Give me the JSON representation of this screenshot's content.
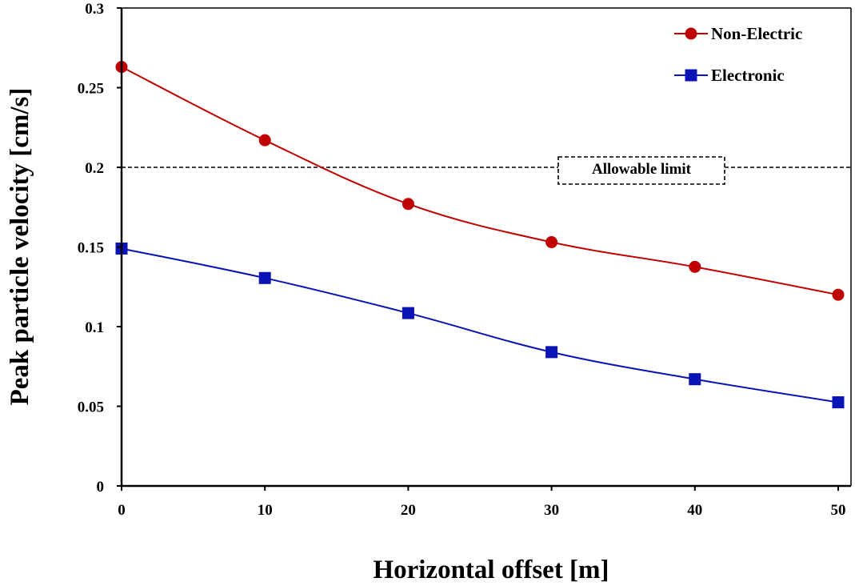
{
  "chart_data": {
    "type": "line",
    "title": "",
    "xlabel": "Horizontal offset [m]",
    "ylabel": "Peak particle velocity [cm/s]",
    "x": [
      0,
      10,
      20,
      30,
      40,
      50
    ],
    "xlim": [
      0,
      50
    ],
    "ylim": [
      0,
      0.3
    ],
    "xticks": [
      0,
      10,
      20,
      30,
      40,
      50
    ],
    "xtick_labels": [
      "0",
      "10",
      "20",
      "30",
      "40",
      "50"
    ],
    "yticks": [
      0,
      0.05,
      0.1,
      0.15,
      0.2,
      0.25,
      0.3
    ],
    "ytick_labels": [
      "0",
      "0.05",
      "0.1",
      "0.15",
      "0.2",
      "0.25",
      "0.3"
    ],
    "grid": false,
    "legend_position": "top-right",
    "series": [
      {
        "name": "Non-Electric",
        "marker": "circle",
        "color": "#C00000",
        "values": [
          0.263,
          0.217,
          0.177,
          0.153,
          0.1375,
          0.12
        ]
      },
      {
        "name": "Electronic",
        "marker": "square",
        "color": "#0A14B4",
        "values": [
          0.149,
          0.1305,
          0.1085,
          0.084,
          0.067,
          0.0525
        ]
      }
    ],
    "reference_lines": [
      {
        "label": "Allowable limit",
        "y": 0.2,
        "style": "dashed",
        "color": "#000000"
      }
    ]
  }
}
